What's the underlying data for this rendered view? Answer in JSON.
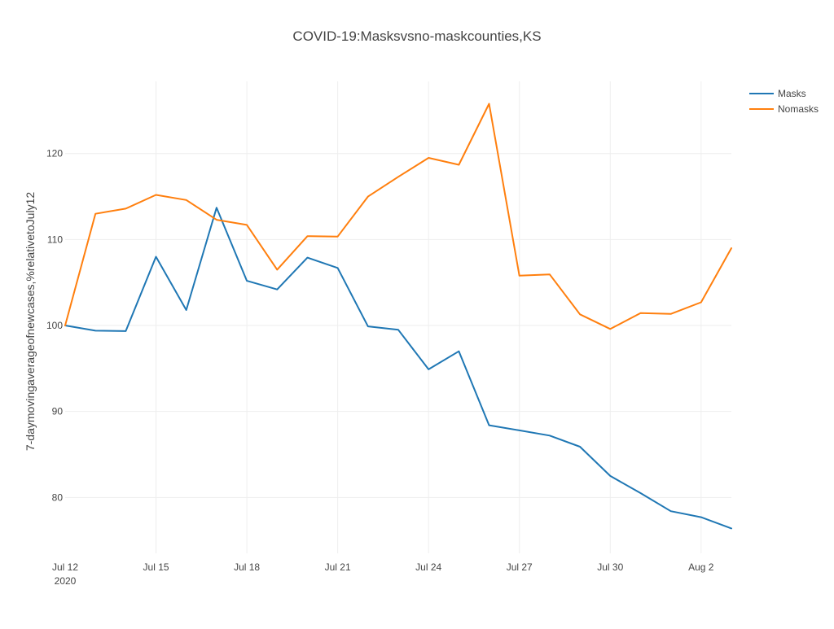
{
  "chart_data": {
    "type": "line",
    "title": "COVID-19:Masksvsno-maskcounties,KS",
    "xlabel": "",
    "ylabel": "7-daymovingaverageofnewcases,%relativetoJuly12",
    "x": [
      "2020-07-12",
      "2020-07-13",
      "2020-07-14",
      "2020-07-15",
      "2020-07-16",
      "2020-07-17",
      "2020-07-18",
      "2020-07-19",
      "2020-07-20",
      "2020-07-21",
      "2020-07-22",
      "2020-07-23",
      "2020-07-24",
      "2020-07-25",
      "2020-07-26",
      "2020-07-27",
      "2020-07-28",
      "2020-07-29",
      "2020-07-30",
      "2020-07-31",
      "2020-08-01",
      "2020-08-02",
      "2020-08-03"
    ],
    "series": [
      {
        "name": "Masks",
        "color": "#1f77b4",
        "values": [
          100.0,
          99.4,
          99.35,
          108.0,
          101.8,
          113.7,
          105.2,
          104.2,
          107.9,
          106.7,
          99.9,
          99.5,
          94.9,
          97.0,
          88.4,
          87.8,
          87.2,
          85.9,
          82.5,
          80.5,
          78.4,
          77.7,
          76.4
        ]
      },
      {
        "name": "Nomasks",
        "color": "#ff7f0e",
        "values": [
          100.0,
          113.0,
          113.6,
          115.2,
          114.6,
          112.3,
          111.7,
          106.5,
          110.4,
          110.35,
          115.0,
          117.3,
          119.5,
          118.7,
          125.8,
          105.8,
          105.95,
          101.3,
          99.6,
          101.45,
          101.35,
          102.7,
          109.0
        ]
      }
    ],
    "x_ticks": [
      "Jul 12",
      "Jul 15",
      "Jul 18",
      "Jul 21",
      "Jul 24",
      "Jul 27",
      "Jul 30",
      "Aug 2"
    ],
    "x_tick_dates": [
      "2020-07-12",
      "2020-07-15",
      "2020-07-18",
      "2020-07-21",
      "2020-07-24",
      "2020-07-27",
      "2020-07-30",
      "2020-08-02"
    ],
    "x_year_label": "2020",
    "y_ticks": [
      80,
      90,
      100,
      110,
      120
    ],
    "ylim": [
      73.5,
      128.4
    ],
    "grid": true,
    "legend_position": "top-right"
  }
}
